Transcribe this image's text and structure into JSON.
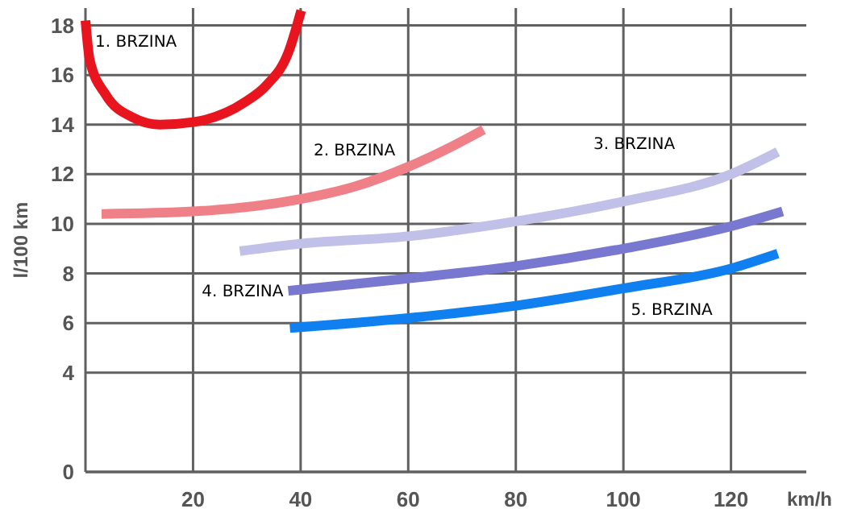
{
  "chart_data": {
    "type": "line",
    "xlabel": "km/h",
    "ylabel": "l/100 km",
    "xlim": [
      0,
      134
    ],
    "ylim": [
      0,
      18.7
    ],
    "xticks": [
      20,
      40,
      60,
      80,
      100,
      120
    ],
    "yticks": [
      0,
      4,
      6,
      8,
      10,
      12,
      14,
      16,
      18
    ],
    "grid": true,
    "marker": "none",
    "line_style": "solid",
    "series": [
      {
        "name": "1. BRZINA",
        "color": "#e8141e",
        "x": [
          0,
          0.8,
          3.8,
          8.7,
          13.8,
          20,
          29.6,
          33.7,
          37.7,
          40.1
        ],
        "values": [
          18.2,
          16.6,
          15.2,
          14.3,
          14.0,
          14.1,
          14.9,
          15.6,
          16.9,
          18.6
        ]
      },
      {
        "name": "2. BRZINA",
        "color": "#f08088",
        "x": [
          3,
          20,
          40,
          50,
          60,
          67,
          74
        ],
        "values": [
          10.4,
          10.5,
          11.0,
          11.5,
          12.3,
          13.0,
          13.8
        ]
      },
      {
        "name": "3. BRZINA",
        "color": "#c0c0e8",
        "x": [
          28.7,
          40,
          60,
          80,
          100,
          120,
          128.7
        ],
        "values": [
          8.9,
          9.2,
          9.5,
          10.1,
          10.9,
          12.0,
          12.9
        ]
      },
      {
        "name": "4. BRZINA",
        "color": "#7878d0",
        "x": [
          37.7,
          60,
          80,
          100,
          120,
          129.6
        ],
        "values": [
          7.3,
          7.8,
          8.3,
          9.0,
          9.9,
          10.5
        ]
      },
      {
        "name": "5. BRZINA",
        "color": "#1080f0",
        "x": [
          38,
          60,
          80,
          100,
          120,
          128.7
        ],
        "values": [
          5.8,
          6.2,
          6.7,
          7.4,
          8.2,
          8.8
        ]
      }
    ]
  }
}
